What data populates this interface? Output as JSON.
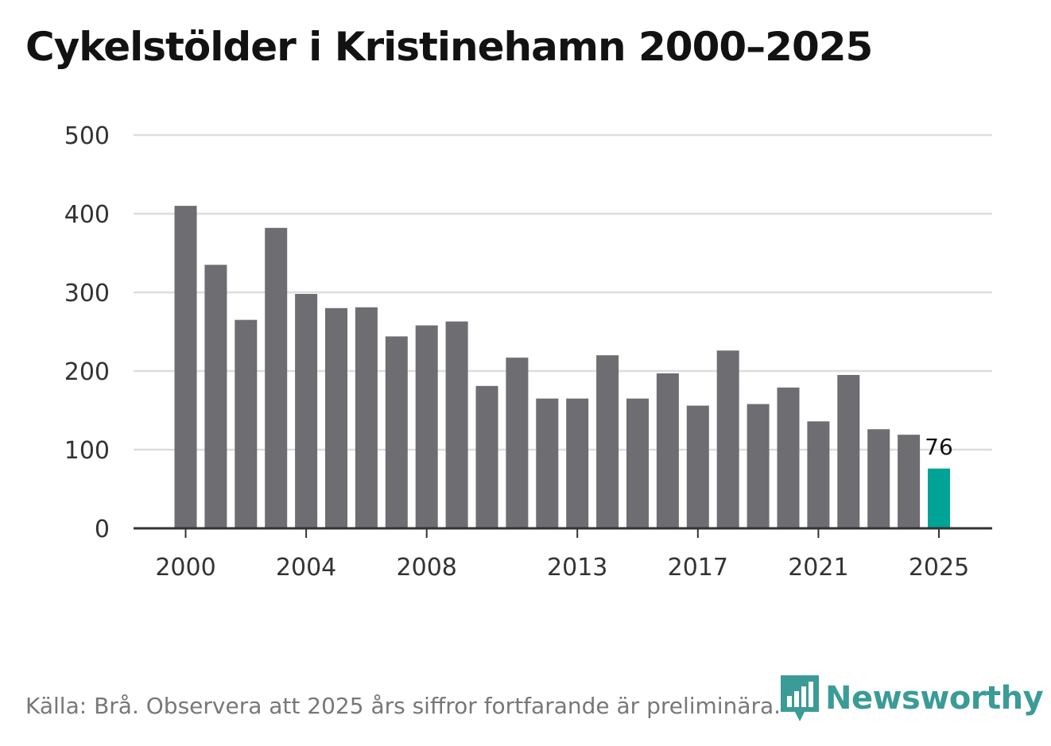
{
  "chart_data": {
    "type": "bar",
    "title": "Cykelstölder i Kristinehamn 2000–2025",
    "xlabel": "",
    "ylabel": "",
    "ylim": [
      0,
      500
    ],
    "yticks": [
      0,
      100,
      200,
      300,
      400,
      500
    ],
    "xtick_labels": [
      "2000",
      "2004",
      "2008",
      "2013",
      "2017",
      "2021",
      "2025"
    ],
    "categories": [
      "2000",
      "2001",
      "2002",
      "2003",
      "2004",
      "2005",
      "2006",
      "2007",
      "2008",
      "2009",
      "2010",
      "2011",
      "2012",
      "2013",
      "2014",
      "2015",
      "2016",
      "2017",
      "2018",
      "2019",
      "2020",
      "2021",
      "2022",
      "2023",
      "2024",
      "2025"
    ],
    "values": [
      410,
      335,
      265,
      382,
      298,
      280,
      281,
      244,
      258,
      263,
      181,
      217,
      165,
      165,
      220,
      165,
      197,
      156,
      226,
      158,
      179,
      136,
      195,
      126,
      119,
      76
    ],
    "highlight_label": "76",
    "grid": true
  },
  "colors": {
    "bar": "#6d6d72",
    "highlight": "#00a396",
    "grid": "#dddddd",
    "axis": "#333333",
    "brand": "#1a8a86"
  },
  "source_text": "Källa: Brå. Observera att 2025 års siffror fortfarande är preliminära.",
  "logo": {
    "text": "Newsworthy",
    "icon": "newsworthy-logo-icon"
  }
}
